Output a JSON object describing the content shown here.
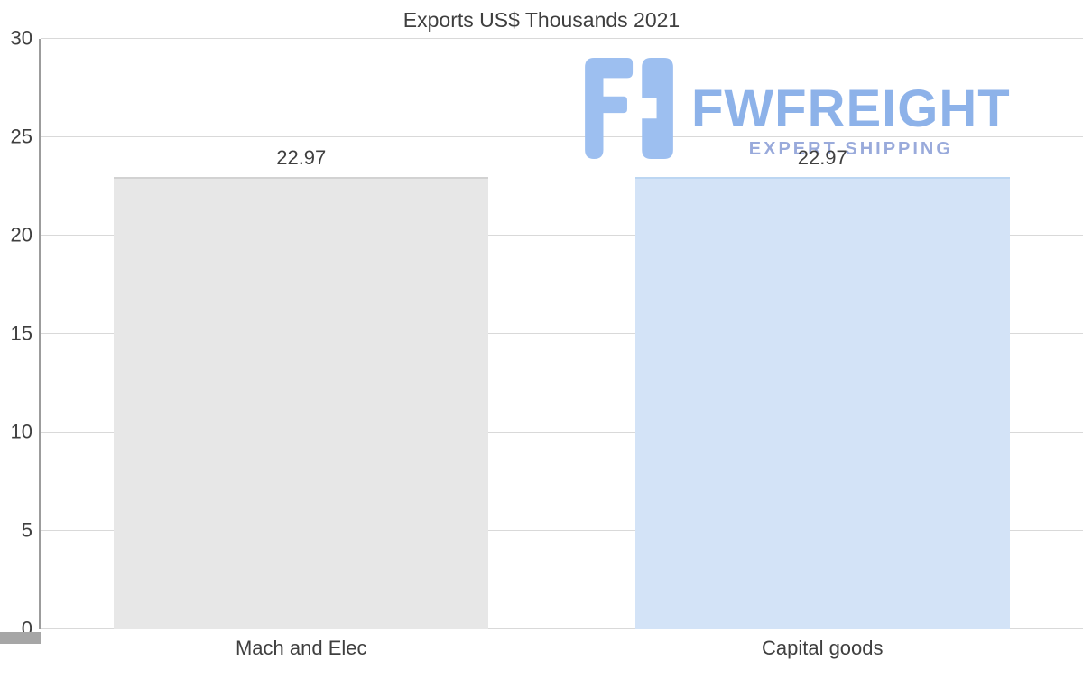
{
  "colors": {
    "text": "#3f3f3f",
    "grid": "#d9d9d9",
    "axis": "#9c9c9c",
    "corner": "#a6a6a6",
    "brand_blue": "#8db2e9",
    "tagline_blue": "#99aadb",
    "icon_blue": "#9dbff0"
  },
  "watermark": {
    "icon": "fwfreight-logo-icon",
    "brand": "FWFREIGHT",
    "tagline": "EXPERT SHIPPING"
  },
  "chart_data": {
    "type": "bar",
    "title": "Exports US$ Thousands 2021",
    "categories": [
      "Mach and Elec",
      "Capital goods"
    ],
    "values": [
      22.97,
      22.97
    ],
    "value_labels": [
      "22.97",
      "22.97"
    ],
    "bar_colors": [
      "#e7e7e7",
      "#d3e3f7"
    ],
    "bar_border_colors": [
      "#d2d2d2",
      "#bcd6f2"
    ],
    "xlabel": "",
    "ylabel": "",
    "ylim": [
      0,
      30
    ],
    "yticks": [
      0,
      5,
      10,
      15,
      20,
      25,
      30
    ],
    "grid": "horizontal",
    "legend": "none"
  }
}
